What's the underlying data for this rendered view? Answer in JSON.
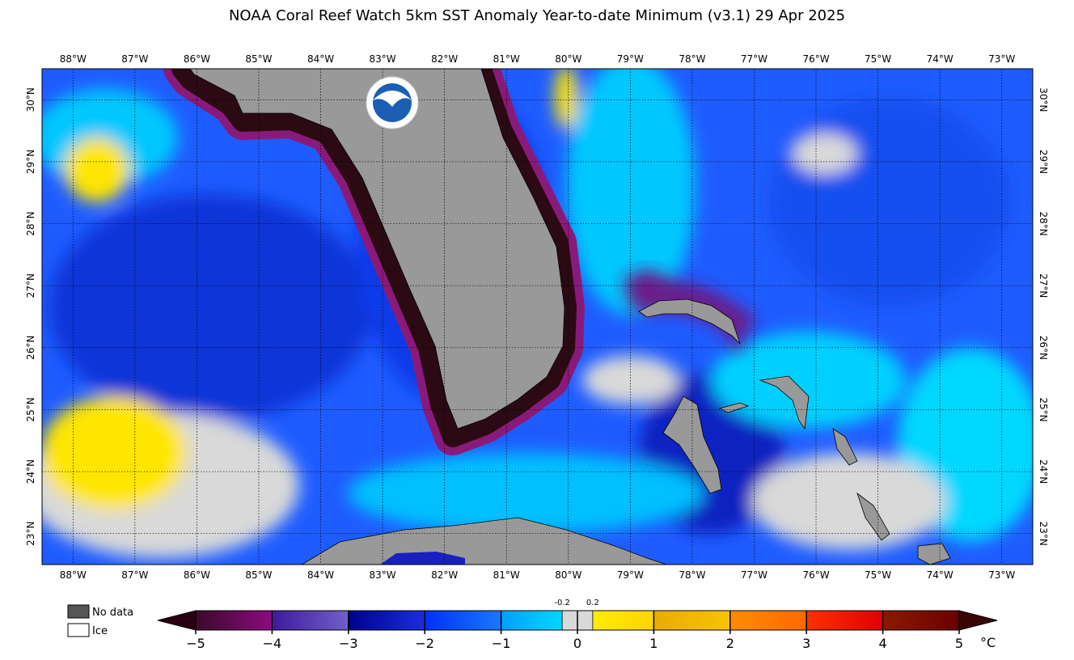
{
  "map": {
    "title": "NOAA Coral Reef Watch 5km SST Anomaly Year-to-date Minimum  (v3.1)   29 Apr 2025",
    "lon_range": [
      -88.5,
      -72.5
    ],
    "lat_range": [
      22.5,
      30.5
    ],
    "lon_ticks": [
      {
        "value": -88,
        "label": "88°W"
      },
      {
        "value": -87,
        "label": "87°W"
      },
      {
        "value": -86,
        "label": "86°W"
      },
      {
        "value": -85,
        "label": "85°W"
      },
      {
        "value": -84,
        "label": "84°W"
      },
      {
        "value": -83,
        "label": "83°W"
      },
      {
        "value": -82,
        "label": "82°W"
      },
      {
        "value": -81,
        "label": "81°W"
      },
      {
        "value": -80,
        "label": "80°W"
      },
      {
        "value": -79,
        "label": "79°W"
      },
      {
        "value": -78,
        "label": "78°W"
      },
      {
        "value": -77,
        "label": "77°W"
      },
      {
        "value": -76,
        "label": "76°W"
      },
      {
        "value": -75,
        "label": "75°W"
      },
      {
        "value": -74,
        "label": "74°W"
      },
      {
        "value": -73,
        "label": "73°W"
      }
    ],
    "lat_ticks": [
      {
        "value": 30,
        "label": "30°N"
      },
      {
        "value": 29,
        "label": "29°N"
      },
      {
        "value": 28,
        "label": "28°N"
      },
      {
        "value": 27,
        "label": "27°N"
      },
      {
        "value": 26,
        "label": "26°N"
      },
      {
        "value": 25,
        "label": "25°N"
      },
      {
        "value": 24,
        "label": "24°N"
      },
      {
        "value": 23,
        "label": "23°N"
      }
    ],
    "legend": [
      "No data",
      "Ice"
    ],
    "colorbar": {
      "range": [
        -5,
        5
      ],
      "ticks": [
        {
          "value": -5,
          "label": "−5"
        },
        {
          "value": -4,
          "label": "−4"
        },
        {
          "value": -3,
          "label": "−3"
        },
        {
          "value": -2,
          "label": "−2"
        },
        {
          "value": -1,
          "label": "−1"
        },
        0,
        1,
        2,
        3,
        4,
        5
      ],
      "minor_ticks": [
        -0.2,
        0.2
      ],
      "unit": "°C",
      "colors": [
        [
          "#3b0a2a",
          "#8c0a80"
        ],
        [
          "#3d1a9e",
          "#7060c8"
        ],
        [
          "#00008c",
          "#1a2ee0"
        ],
        [
          "#0030ff",
          "#1a78ff"
        ],
        [
          "#00a0ff",
          "#00e5ff"
        ],
        [
          "#fff200",
          "#ffd500"
        ],
        [
          "#e8ac00",
          "#f8c400"
        ],
        [
          "#ff8c00",
          "#ff6800"
        ],
        [
          "#ff3000",
          "#e00000"
        ],
        [
          "#8c1a00",
          "#6a0000"
        ]
      ],
      "neutral_color": "#d9d9d9",
      "under_color": "#2b0010",
      "over_color": "#3a0505"
    }
  }
}
